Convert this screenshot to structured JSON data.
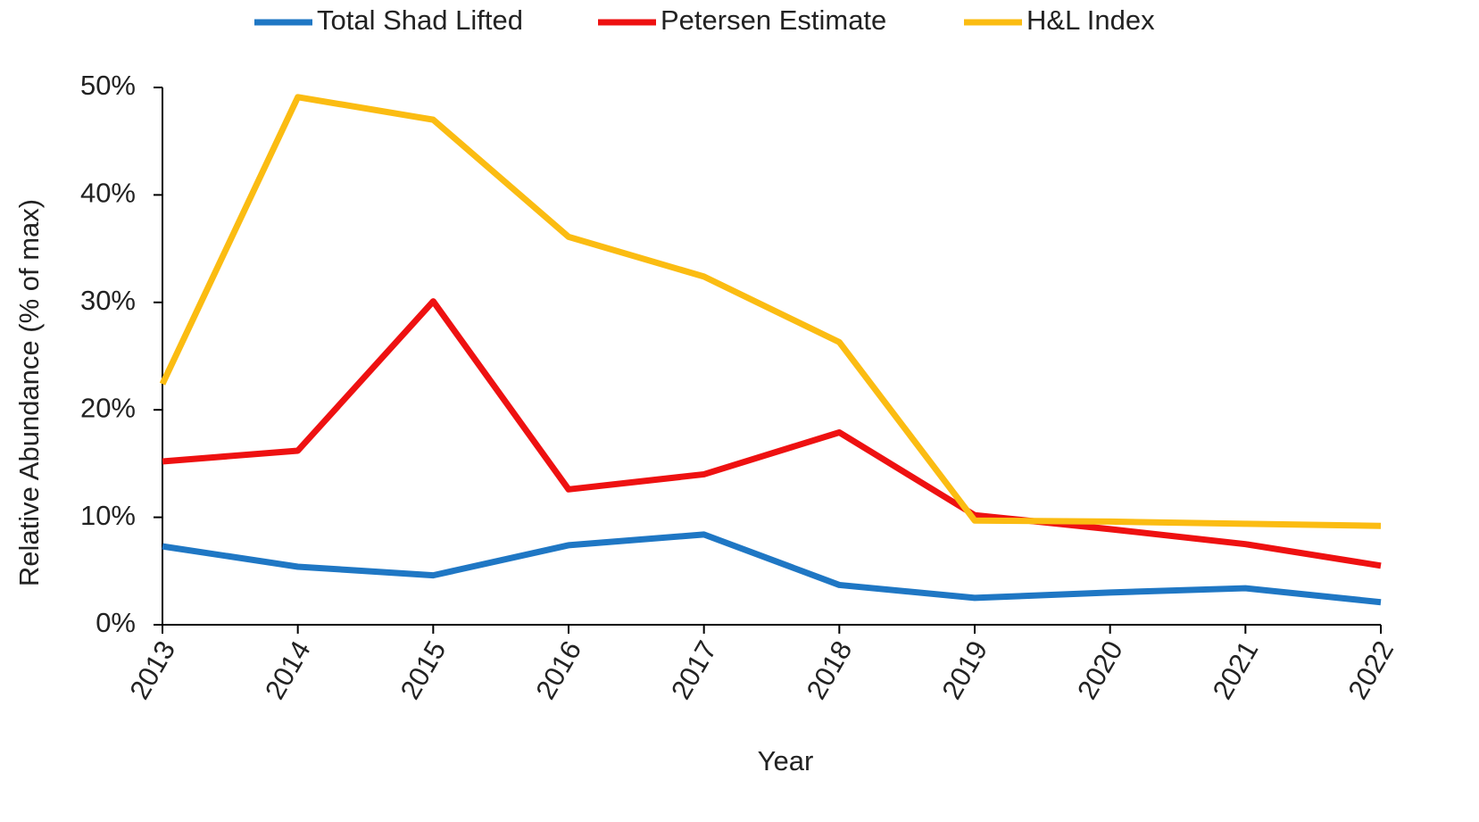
{
  "chart_data": {
    "type": "line",
    "x_label": "Year",
    "y_label": "Relative Abundance (% of max)",
    "categories": [
      "2013",
      "2014",
      "2015",
      "2016",
      "2017",
      "2018",
      "2019",
      "2020",
      "2021",
      "2022"
    ],
    "series": [
      {
        "name": "Total Shad Lifted",
        "color": "#1f77c4",
        "values": [
          7.3,
          5.4,
          4.6,
          7.4,
          8.4,
          3.7,
          2.5,
          3.0,
          3.4,
          2.1
        ]
      },
      {
        "name": "Petersen Estimate",
        "color": "#ee1111",
        "values": [
          15.2,
          16.2,
          30.1,
          12.6,
          14.0,
          17.9,
          10.2,
          8.9,
          7.5,
          5.5
        ]
      },
      {
        "name": "H&L Index",
        "color": "#fbbc12",
        "values": [
          22.4,
          49.1,
          47.0,
          36.1,
          32.4,
          26.3,
          9.7,
          9.6,
          9.4,
          9.2
        ]
      }
    ],
    "ylim": [
      0,
      50
    ],
    "yticks": [
      {
        "value": 0,
        "label": "0%"
      },
      {
        "value": 10,
        "label": "10%"
      },
      {
        "value": 20,
        "label": "20%"
      },
      {
        "value": 30,
        "label": "30%"
      },
      {
        "value": 40,
        "label": "40%"
      },
      {
        "value": 50,
        "label": "50%"
      }
    ],
    "grid": false,
    "legend": "top"
  }
}
